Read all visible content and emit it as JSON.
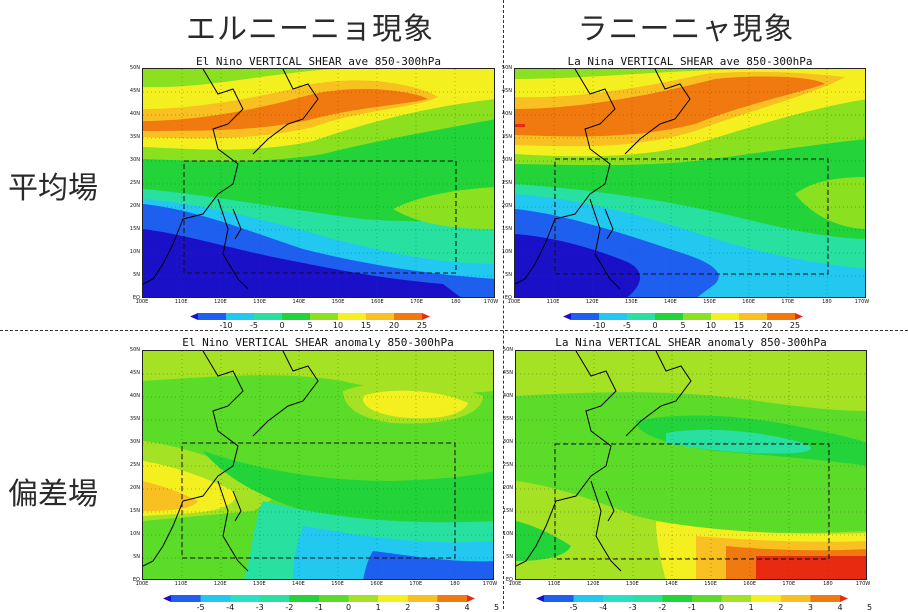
{
  "column_titles": {
    "el_nino": "エルニーニョ現象",
    "la_nina": "ラニーニャ現象"
  },
  "row_titles": {
    "mean": "平均場",
    "anomaly": "偏差場"
  },
  "panels": {
    "el_nino_mean": {
      "title": "El Nino VERTICAL SHEAR ave 850-300hPa",
      "lat_labels": [
        "50N",
        "45N",
        "40N",
        "35N",
        "30N",
        "25N",
        "20N",
        "15N",
        "10N",
        "5N",
        "EQ"
      ],
      "lon_labels": [
        "100E",
        "110E",
        "120E",
        "130E",
        "140E",
        "150E",
        "160E",
        "170E",
        "180",
        "170W"
      ]
    },
    "la_nina_mean": {
      "title": "La Nina VERTICAL SHEAR ave 850-300hPa",
      "lat_labels": [
        "50N",
        "45N",
        "40N",
        "35N",
        "30N",
        "25N",
        "20N",
        "15N",
        "10N",
        "5N",
        "EQ"
      ],
      "lon_labels": [
        "100E",
        "110E",
        "120E",
        "130E",
        "140E",
        "150E",
        "160E",
        "170E",
        "180",
        "170W"
      ]
    },
    "el_nino_anom": {
      "title": "El Nino VERTICAL SHEAR anomaly 850-300hPa",
      "lat_labels": [
        "50N",
        "45N",
        "40N",
        "35N",
        "30N",
        "25N",
        "20N",
        "15N",
        "10N",
        "5N",
        "EQ"
      ],
      "lon_labels": [
        "100E",
        "110E",
        "120E",
        "130E",
        "140E",
        "150E",
        "160E",
        "170E",
        "180",
        "170W"
      ]
    },
    "la_nina_anom": {
      "title": "La Nina VERTICAL SHEAR anomaly 850-300hPa",
      "lat_labels": [
        "50N",
        "45N",
        "40N",
        "35N",
        "30N",
        "25N",
        "20N",
        "15N",
        "10N",
        "5N",
        "EQ"
      ],
      "lon_labels": [
        "100E",
        "110E",
        "120E",
        "130E",
        "140E",
        "150E",
        "160E",
        "170E",
        "180",
        "170W"
      ]
    }
  },
  "colorbars": {
    "mean": {
      "labels": [
        "-10",
        "-5",
        "0",
        "5",
        "10",
        "15",
        "20",
        "25"
      ],
      "colors": [
        "#1a10c8",
        "#1f5ff0",
        "#22c8f0",
        "#28e0a0",
        "#22d43a",
        "#8be020",
        "#f4f020",
        "#f8c020",
        "#f07a10",
        "#e82a10"
      ]
    },
    "anomaly": {
      "labels": [
        "-5",
        "-4",
        "-3",
        "-2",
        "-1",
        "0",
        "1",
        "2",
        "3",
        "4",
        "5"
      ],
      "colors": [
        "#1a10c8",
        "#1f5ff0",
        "#22c8f0",
        "#28e0c8",
        "#28e0a0",
        "#22d43a",
        "#5adc28",
        "#a6e224",
        "#f4f020",
        "#f8c020",
        "#f07a10",
        "#e82a10"
      ]
    }
  }
}
